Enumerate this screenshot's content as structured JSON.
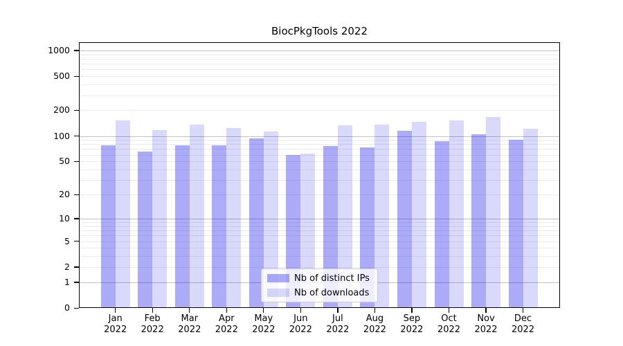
{
  "chart_data": {
    "type": "bar",
    "title": "BiocPkgTools 2022",
    "categories": [
      "Jan 2022",
      "Feb 2022",
      "Mar 2022",
      "Apr 2022",
      "May 2022",
      "Jun 2022",
      "Jul 2022",
      "Aug 2022",
      "Sep 2022",
      "Oct 2022",
      "Nov 2022",
      "Dec 2022"
    ],
    "series": [
      {
        "name": "Nb of distinct IPs",
        "color": "rgba(0,0,230,0.33)",
        "values": [
          78,
          66,
          78,
          78,
          94,
          60,
          76,
          73,
          116,
          87,
          105,
          91
        ]
      },
      {
        "name": "Nb of downloads",
        "color": "rgba(0,0,230,0.15)",
        "values": [
          153,
          117,
          136,
          124,
          112,
          62,
          134,
          136,
          148,
          152,
          167,
          122
        ]
      }
    ],
    "yscale": "log1p",
    "yticks": [
      0,
      1,
      2,
      5,
      10,
      20,
      50,
      100,
      200,
      500,
      1000
    ],
    "grid_major_at": [
      1,
      10,
      100,
      1000
    ],
    "grid_minor_decades": [
      1,
      10,
      100
    ],
    "ylim": [
      0,
      1200
    ],
    "xlabel": "",
    "ylabel": "",
    "grid": true,
    "legend_position": "lower center"
  },
  "colors": {
    "background": "#ffffff",
    "spine": "#000000",
    "grid_major": "#c0c0c0",
    "grid_minor": "#ebebeb",
    "legend_border": "#cccccc",
    "legend_background": "rgba(255,255,255,0.8)"
  }
}
